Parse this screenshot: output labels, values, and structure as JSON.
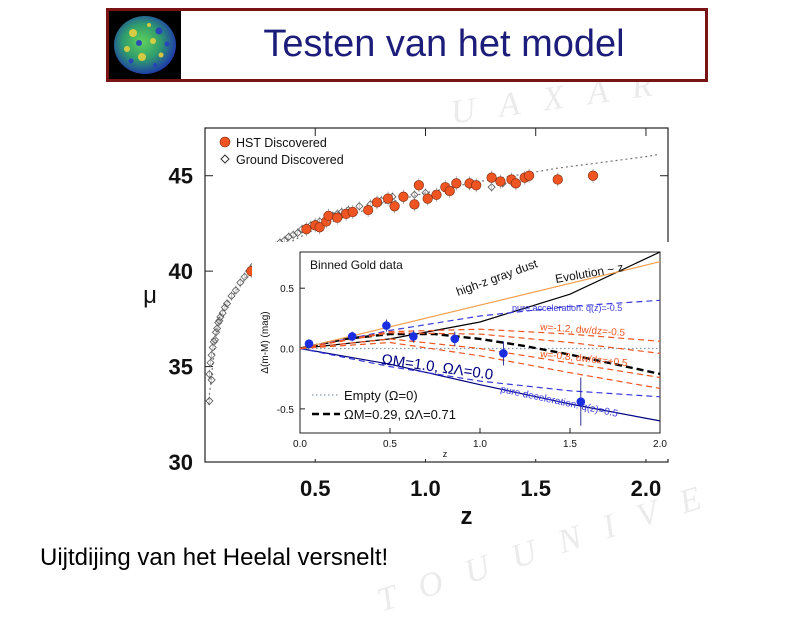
{
  "slide": {
    "title": "Testen van het model",
    "caption": "Uijtdijing van het Heelal versnelt!",
    "colors": {
      "title": "#1c1c7a",
      "border": "#7a1414"
    },
    "logo": "cmb-sky-map-icon"
  },
  "chart_data": [
    {
      "type": "scatter",
      "title": "",
      "xlabel": "z",
      "ylabel": "μ",
      "xlim": [
        0,
        2.1
      ],
      "ylim": [
        30,
        47.5
      ],
      "xticks": [
        "0.5",
        "1.0",
        "1.5",
        "2.0"
      ],
      "yticks": [
        "30",
        "35",
        "40",
        "45"
      ],
      "legend": {
        "placement": "top-left",
        "entries": [
          "HST Discovered",
          "Ground Discovered"
        ]
      },
      "series": [
        {
          "name": "HST Discovered",
          "marker": "filled-circle",
          "color": "#ee5522",
          "points": [
            [
              0.21,
              40.0
            ],
            [
              0.46,
              42.2
            ],
            [
              0.5,
              42.4
            ],
            [
              0.52,
              42.3
            ],
            [
              0.55,
              42.6
            ],
            [
              0.56,
              42.9
            ],
            [
              0.6,
              42.8
            ],
            [
              0.64,
              43.0
            ],
            [
              0.67,
              43.1
            ],
            [
              0.74,
              43.2
            ],
            [
              0.78,
              43.6
            ],
            [
              0.83,
              43.8
            ],
            [
              0.86,
              43.4
            ],
            [
              0.9,
              43.9
            ],
            [
              0.95,
              43.5
            ],
            [
              0.97,
              44.5
            ],
            [
              1.01,
              43.8
            ],
            [
              1.05,
              44.0
            ],
            [
              1.09,
              44.4
            ],
            [
              1.11,
              44.2
            ],
            [
              1.14,
              44.6
            ],
            [
              1.2,
              44.6
            ],
            [
              1.23,
              44.5
            ],
            [
              1.3,
              44.9
            ],
            [
              1.34,
              44.7
            ],
            [
              1.39,
              44.8
            ],
            [
              1.41,
              44.6
            ],
            [
              1.45,
              44.9
            ],
            [
              1.47,
              45.0
            ],
            [
              1.6,
              44.8
            ],
            [
              1.76,
              45.0
            ]
          ]
        },
        {
          "name": "Ground Discovered",
          "marker": "open-diamond",
          "color": "#555555",
          "points": [
            [
              0.02,
              33.2
            ],
            [
              0.02,
              34.6
            ],
            [
              0.025,
              35.2
            ],
            [
              0.03,
              35.6
            ],
            [
              0.03,
              34.3
            ],
            [
              0.035,
              36.0
            ],
            [
              0.04,
              36.3
            ],
            [
              0.045,
              36.4
            ],
            [
              0.05,
              36.8
            ],
            [
              0.055,
              37.0
            ],
            [
              0.06,
              37.3
            ],
            [
              0.065,
              37.4
            ],
            [
              0.07,
              37.6
            ],
            [
              0.08,
              37.8
            ],
            [
              0.09,
              38.1
            ],
            [
              0.1,
              38.3
            ],
            [
              0.12,
              38.7
            ],
            [
              0.14,
              39.0
            ],
            [
              0.16,
              39.4
            ],
            [
              0.18,
              39.7
            ],
            [
              0.2,
              40.0
            ],
            [
              0.22,
              40.3
            ],
            [
              0.25,
              40.6
            ],
            [
              0.28,
              40.9
            ],
            [
              0.3,
              41.1
            ],
            [
              0.32,
              41.3
            ],
            [
              0.34,
              41.5
            ],
            [
              0.36,
              41.6
            ],
            [
              0.38,
              41.8
            ],
            [
              0.4,
              41.9
            ],
            [
              0.42,
              42.0
            ],
            [
              0.44,
              42.2
            ],
            [
              0.46,
              42.3
            ],
            [
              0.48,
              42.4
            ],
            [
              0.5,
              42.5
            ],
            [
              0.52,
              42.6
            ],
            [
              0.55,
              42.7
            ],
            [
              0.58,
              42.9
            ],
            [
              0.6,
              43.0
            ],
            [
              0.62,
              43.1
            ],
            [
              0.65,
              43.2
            ],
            [
              0.7,
              43.4
            ],
            [
              0.75,
              43.5
            ],
            [
              0.8,
              43.7
            ],
            [
              0.85,
              43.9
            ],
            [
              0.9,
              43.8
            ],
            [
              0.95,
              44.0
            ],
            [
              1.0,
              44.1
            ],
            [
              1.1,
              44.3
            ],
            [
              1.2,
              44.5
            ],
            [
              1.3,
              44.4
            ],
            [
              1.35,
              44.6
            ]
          ]
        }
      ],
      "model_curve": {
        "style": "dotted",
        "color": "#777777",
        "points": [
          [
            0.015,
            33.0
          ],
          [
            0.05,
            36.7
          ],
          [
            0.1,
            38.3
          ],
          [
            0.2,
            39.9
          ],
          [
            0.3,
            40.9
          ],
          [
            0.4,
            41.6
          ],
          [
            0.5,
            42.2
          ],
          [
            0.6,
            42.7
          ],
          [
            0.7,
            43.1
          ],
          [
            0.8,
            43.5
          ],
          [
            0.9,
            43.8
          ],
          [
            1.0,
            44.1
          ],
          [
            1.2,
            44.6
          ],
          [
            1.4,
            45.0
          ],
          [
            1.6,
            45.4
          ],
          [
            1.8,
            45.7
          ],
          [
            2.0,
            46.0
          ],
          [
            2.05,
            46.1
          ]
        ]
      }
    },
    {
      "type": "line",
      "title": "Binned Gold data",
      "xlabel": "z",
      "ylabel": "Δ(m-M) (mag)",
      "xlim": [
        0,
        2.0
      ],
      "ylim": [
        -0.7,
        0.8
      ],
      "xticks": [
        "0.0",
        "0.5",
        "1.0",
        "1.5",
        "2.0"
      ],
      "yticks": [
        "0.5",
        "0.0",
        "-0.5"
      ],
      "legend": {
        "placement": "bottom-left",
        "entries": [
          "Empty (Ω=0)",
          "ΩM=0.29, ΩΛ=0.71"
        ]
      },
      "data_points": {
        "color": "#1a2ee0",
        "points": [
          [
            0.05,
            0.04
          ],
          [
            0.29,
            0.1
          ],
          [
            0.48,
            0.19
          ],
          [
            0.63,
            0.1
          ],
          [
            0.86,
            0.08
          ],
          [
            1.13,
            -0.04
          ],
          [
            1.56,
            -0.44
          ]
        ],
        "errors": [
          0.03,
          0.04,
          0.05,
          0.05,
          0.06,
          0.1,
          0.2
        ]
      },
      "series": [
        {
          "name": "Empty (Ω=0)",
          "style": "dotted",
          "color": "#8899aa",
          "points": [
            [
              0,
              0
            ],
            [
              2,
              0
            ]
          ]
        },
        {
          "name": "ΩM=0.29, ΩΛ=0.71",
          "style": "dashed-black",
          "color": "#000000",
          "points": [
            [
              0,
              0
            ],
            [
              0.25,
              0.08
            ],
            [
              0.5,
              0.12
            ],
            [
              0.75,
              0.12
            ],
            [
              1.0,
              0.08
            ],
            [
              1.25,
              0.02
            ],
            [
              1.5,
              -0.05
            ],
            [
              1.75,
              -0.13
            ],
            [
              2.0,
              -0.21
            ]
          ]
        },
        {
          "name": "ΩM=1.0, ΩΛ=0.0",
          "style": "solid",
          "color": "#000080",
          "points": [
            [
              0,
              0
            ],
            [
              0.5,
              -0.13
            ],
            [
              1.0,
              -0.3
            ],
            [
              1.5,
              -0.46
            ],
            [
              2.0,
              -0.6
            ]
          ]
        },
        {
          "name": "high-z gray dust",
          "style": "solid",
          "color": "#000000",
          "points": [
            [
              0,
              0
            ],
            [
              0.5,
              0.08
            ],
            [
              1.0,
              0.22
            ],
            [
              1.5,
              0.45
            ],
            [
              2.0,
              0.8
            ]
          ]
        },
        {
          "name": "Evolution ~ z",
          "style": "solid",
          "color": "#f4a050",
          "points": [
            [
              0,
              0
            ],
            [
              2.0,
              0.72
            ]
          ]
        },
        {
          "name": "pure acceleration: q(z)=-0.5",
          "style": "dashed",
          "color": "#3a3add",
          "points": [
            [
              0,
              0
            ],
            [
              0.5,
              0.15
            ],
            [
              1.0,
              0.27
            ],
            [
              1.5,
              0.35
            ],
            [
              2.0,
              0.4
            ]
          ]
        },
        {
          "name": "pure deceleration: q(z)=0.5",
          "style": "dashed",
          "color": "#3a3add",
          "points": [
            [
              0,
              0
            ],
            [
              0.5,
              -0.15
            ],
            [
              1.0,
              -0.27
            ],
            [
              1.5,
              -0.35
            ],
            [
              2.0,
              -0.4
            ]
          ]
        },
        {
          "name": "w=-1.2, dw/dz=-0.5",
          "style": "dashed",
          "color": "#ee5522",
          "points": [
            [
              0,
              0
            ],
            [
              0.5,
              0.14
            ],
            [
              1.0,
              0.16
            ],
            [
              1.5,
              0.12
            ],
            [
              2.0,
              0.06
            ]
          ]
        },
        {
          "name": "w=-0.8, dw/dz=+0.5",
          "style": "dashed",
          "color": "#ee5522",
          "points": [
            [
              0,
              0
            ],
            [
              0.5,
              0.08
            ],
            [
              1.0,
              0.0
            ],
            [
              1.5,
              -0.12
            ],
            [
              2.0,
              -0.24
            ]
          ]
        },
        {
          "name": "band",
          "style": "dashed",
          "color": "#ee5522",
          "points": [
            [
              0,
              0
            ],
            [
              0.5,
              0.13
            ],
            [
              1.0,
              0.12
            ],
            [
              1.5,
              0.05
            ],
            [
              2.0,
              -0.04
            ]
          ]
        },
        {
          "name": "band",
          "style": "dashed",
          "color": "#ee5522",
          "points": [
            [
              0,
              0
            ],
            [
              0.5,
              0.05
            ],
            [
              1.0,
              -0.06
            ],
            [
              1.5,
              -0.2
            ],
            [
              2.0,
              -0.33
            ]
          ]
        }
      ],
      "annotations": [
        "high-z gray dust",
        "Evolution ~ z",
        "pure acceleration: q(z)=-0.5",
        "w=-1.2, dw/dz=-0.5",
        "w=-0.8, dw/dz=+0.5",
        "ΩM=1.0, ΩΛ=0.0",
        "pure deceleration: q(z)=0.5"
      ]
    }
  ]
}
